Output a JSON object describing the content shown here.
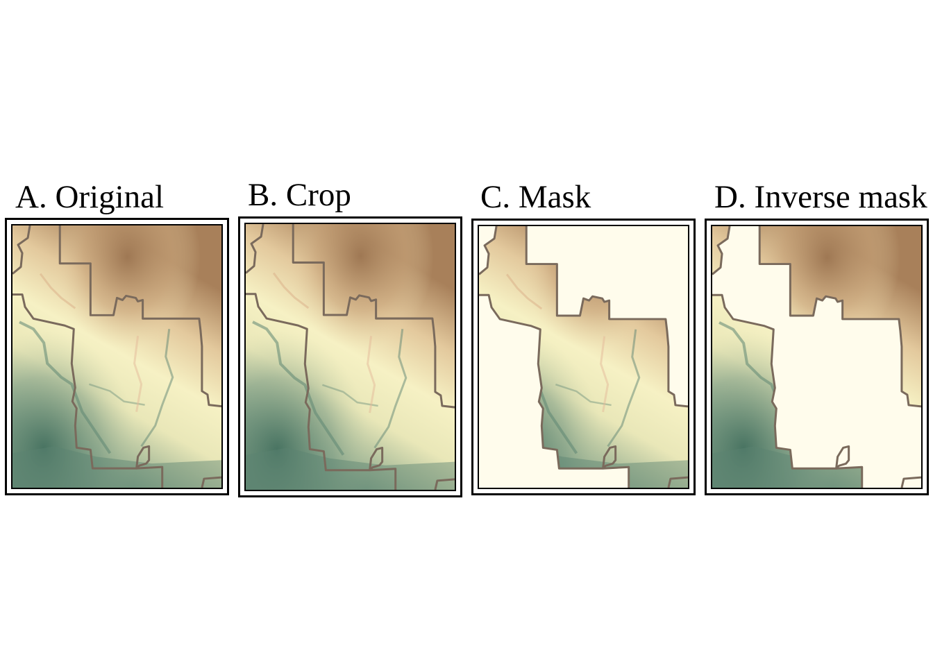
{
  "panels": [
    {
      "id": "original",
      "title": "A. Original"
    },
    {
      "id": "crop",
      "title": "B. Crop"
    },
    {
      "id": "mask",
      "title": "C. Mask"
    },
    {
      "id": "inverse",
      "title": "D. Inverse mask"
    }
  ],
  "colors": {
    "background": "#ffffff",
    "frame": "#000000",
    "mask_fill": "#fffcec",
    "boundary": "#7a6a5c",
    "elevation_low": "#4d7866",
    "elevation_mid": "#f6f1c4",
    "elevation_high": "#a8805a"
  }
}
